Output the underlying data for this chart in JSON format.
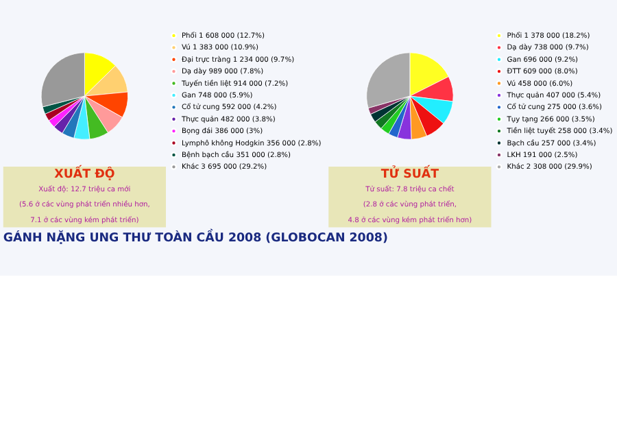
{
  "chart_data": [
    {
      "type": "pie",
      "title": "GÁNH NẶNG UNG THƯ TOÀN CẦU 2008 (GLOBOCAN 2008)",
      "legend": "right",
      "categories": [
        "Phổi",
        "Vú",
        "Đại trực tràng",
        "Dạ dày",
        "Tuyến tiền liệt",
        "Gan",
        "Cổ tử cung",
        "Thực quản",
        "Bọng đái",
        "Lymphô không Hodgkin",
        "Bệnh bạch cầu",
        "Khác"
      ],
      "values": [
        1608000,
        1383000,
        1234000,
        989000,
        914000,
        748000,
        592000,
        482000,
        386000,
        356000,
        351000,
        3695000
      ],
      "value_labels": [
        "1 608 000 (12.7%)",
        "1 383 000 (10.9%)",
        "1 234 000 (9.7%)",
        "989 000 (7.8%)",
        "914 000 (7.2%)",
        "748 000 (5.9%)",
        "592 000 (4.2%)",
        "482 000 (3.8%)",
        "386 000 (3%)",
        "356 000 (2.8%)",
        "351 000 (2.8%)",
        "3 695 000 (29.2%)"
      ],
      "colors": [
        "#ffff00",
        "#ffd070",
        "#ff4400",
        "#ff9a9a",
        "#44bb22",
        "#44eeff",
        "#2277bb",
        "#6622aa",
        "#ff22ff",
        "#aa0022",
        "#005544",
        "#999999"
      ],
      "annotations": [
        "XUẤT ĐỘ",
        "Xuất độ: 12.7 triệu ca mới",
        "(5.6 ở các vùng phát triển nhiều hơn,",
        "7.1 ở các vùng kém phát triển)"
      ]
    },
    {
      "type": "pie",
      "legend": "right",
      "categories": [
        "Phổi",
        "Dạ dày",
        "Gan",
        "ĐTT",
        "Vú",
        "Thực quản",
        "Cổ tử cung",
        "Tụy tạng",
        "Tiền liệt tuyết",
        "Bạch cầu",
        "LKH",
        "Khác"
      ],
      "values": [
        1378000,
        738000,
        696000,
        609000,
        458000,
        407000,
        275000,
        266000,
        258000,
        257000,
        191000,
        2308000
      ],
      "value_labels": [
        "1 378 000 (18.2%)",
        "738 000 (9.7%)",
        "696 000 (9.2%)",
        "609 000 (8.0%)",
        "458 000 (6.0%)",
        "407 000 (5.4%)",
        "275 000 (3.6%)",
        "266 000 (3.5%)",
        "258 000 (3.4%)",
        "257 000 (3.4%)",
        "191 000 (2.5%)",
        "2 308 000 (29.9%)"
      ],
      "colors": [
        "#ffff22",
        "#ff3344",
        "#22eeff",
        "#ee1111",
        "#ff9922",
        "#8833dd",
        "#2266cc",
        "#22cc22",
        "#117722",
        "#003333",
        "#883366",
        "#aaaaaa"
      ],
      "annotations": [
        "TỬ SUẤT",
        "Tử suất: 7.8 triệu ca chết",
        "(2.8 ở các vùng phát triển,",
        "4.8 ở các vùng kém phát triển hơn)"
      ]
    }
  ]
}
